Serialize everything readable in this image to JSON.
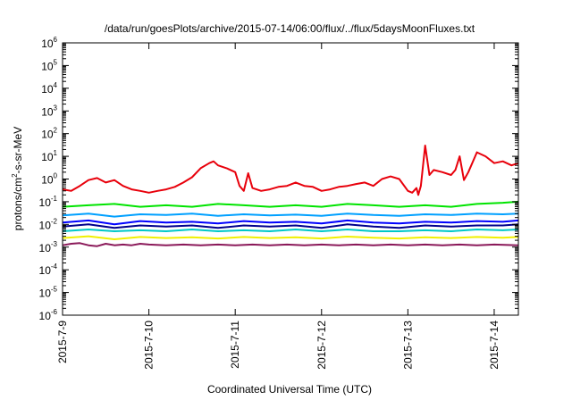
{
  "chart_data": {
    "type": "line",
    "title": "/data/run/goesPlots/archive/2015-07-14/06:00/flux/../flux/5daysMoonFluxes.txt",
    "xlabel": "Coordinated Universal Time (UTC)",
    "ylabel": {
      "base": "protons/cm",
      "sup": "2",
      "rest": "-s-sr-MeV"
    },
    "y_scale": "log",
    "ylim": [
      1e-06,
      1000000.0
    ],
    "y_ticks": [
      {
        "base": "10",
        "exp": "6"
      },
      {
        "base": "10",
        "exp": "5"
      },
      {
        "base": "10",
        "exp": "4"
      },
      {
        "base": "10",
        "exp": "3"
      },
      {
        "base": "10",
        "exp": "2"
      },
      {
        "base": "10",
        "exp": "1"
      },
      {
        "base": "10",
        "exp": "0"
      },
      {
        "base": "10",
        "exp": "-1"
      },
      {
        "base": "10",
        "exp": "-2"
      },
      {
        "base": "10",
        "exp": "-3"
      },
      {
        "base": "10",
        "exp": "-4"
      },
      {
        "base": "10",
        "exp": "-5"
      },
      {
        "base": "10",
        "exp": "-6"
      }
    ],
    "x_ticks": [
      "2015-7-9",
      "2015-7-10",
      "2015-7-11",
      "2015-7-12",
      "2015-7-13",
      "2015-7-14"
    ],
    "xlim": [
      0,
      5.28
    ],
    "grid": false,
    "series": [
      {
        "color": "#e8000b",
        "x": [
          0.0,
          0.1,
          0.2,
          0.3,
          0.4,
          0.5,
          0.6,
          0.7,
          0.8,
          0.9,
          1.0,
          1.1,
          1.2,
          1.3,
          1.4,
          1.5,
          1.6,
          1.7,
          1.75,
          1.8,
          1.9,
          2.0,
          2.05,
          2.1,
          2.15,
          2.2,
          2.3,
          2.4,
          2.5,
          2.6,
          2.7,
          2.8,
          2.9,
          3.0,
          3.1,
          3.2,
          3.3,
          3.4,
          3.5,
          3.6,
          3.7,
          3.8,
          3.9,
          4.0,
          4.05,
          4.1,
          4.12,
          4.15,
          4.2,
          4.25,
          4.3,
          4.4,
          4.5,
          4.55,
          4.6,
          4.65,
          4.7,
          4.8,
          4.9,
          5.0,
          5.1,
          5.2,
          5.28
        ],
        "y": [
          0.35,
          0.3,
          0.5,
          0.9,
          1.1,
          0.7,
          0.9,
          0.5,
          0.35,
          0.3,
          0.25,
          0.3,
          0.35,
          0.45,
          0.7,
          1.2,
          3.0,
          5.0,
          6.0,
          4.0,
          3.0,
          2.0,
          0.5,
          0.3,
          1.8,
          0.4,
          0.3,
          0.35,
          0.45,
          0.5,
          0.7,
          0.5,
          0.45,
          0.3,
          0.35,
          0.45,
          0.5,
          0.6,
          0.7,
          0.5,
          1.0,
          1.3,
          1.0,
          0.3,
          0.25,
          0.4,
          0.2,
          0.5,
          30.0,
          1.5,
          2.5,
          2.0,
          1.5,
          2.5,
          10.0,
          0.9,
          2.0,
          15.0,
          10.0,
          5.0,
          6.0,
          4.0,
          5.0
        ]
      },
      {
        "color": "#00e400",
        "x": [
          0.0,
          0.3,
          0.6,
          0.9,
          1.2,
          1.5,
          1.8,
          2.1,
          2.4,
          2.7,
          3.0,
          3.3,
          3.6,
          3.9,
          4.2,
          4.5,
          4.8,
          5.1,
          5.28
        ],
        "y": [
          0.06,
          0.07,
          0.08,
          0.06,
          0.07,
          0.06,
          0.08,
          0.07,
          0.06,
          0.07,
          0.06,
          0.08,
          0.07,
          0.06,
          0.07,
          0.06,
          0.08,
          0.09,
          0.1
        ]
      },
      {
        "color": "#00a0ff",
        "x": [
          0.0,
          0.3,
          0.6,
          0.9,
          1.2,
          1.5,
          1.8,
          2.1,
          2.4,
          2.7,
          3.0,
          3.3,
          3.6,
          3.9,
          4.2,
          4.5,
          4.8,
          5.1,
          5.28
        ],
        "y": [
          0.025,
          0.03,
          0.022,
          0.028,
          0.026,
          0.03,
          0.024,
          0.028,
          0.025,
          0.027,
          0.024,
          0.03,
          0.026,
          0.024,
          0.028,
          0.026,
          0.03,
          0.028,
          0.03
        ]
      },
      {
        "color": "#0000ff",
        "x": [
          0.0,
          0.3,
          0.6,
          0.9,
          1.2,
          1.5,
          1.8,
          2.1,
          2.4,
          2.7,
          3.0,
          3.3,
          3.6,
          3.9,
          4.2,
          4.5,
          4.8,
          5.1,
          5.28
        ],
        "y": [
          0.012,
          0.015,
          0.01,
          0.014,
          0.012,
          0.013,
          0.011,
          0.014,
          0.012,
          0.013,
          0.011,
          0.015,
          0.012,
          0.011,
          0.013,
          0.012,
          0.014,
          0.013,
          0.015
        ]
      },
      {
        "color": "#00008b",
        "x": [
          0.0,
          0.3,
          0.6,
          0.9,
          1.2,
          1.5,
          1.8,
          2.1,
          2.4,
          2.7,
          3.0,
          3.3,
          3.6,
          3.9,
          4.2,
          4.5,
          4.8,
          5.1,
          5.28
        ],
        "y": [
          0.008,
          0.01,
          0.007,
          0.009,
          0.008,
          0.009,
          0.007,
          0.009,
          0.008,
          0.009,
          0.007,
          0.01,
          0.008,
          0.007,
          0.009,
          0.008,
          0.009,
          0.009,
          0.01
        ]
      },
      {
        "color": "#00c8c8",
        "x": [
          0.0,
          0.3,
          0.6,
          0.9,
          1.2,
          1.5,
          1.8,
          2.1,
          2.4,
          2.7,
          3.0,
          3.3,
          3.6,
          3.9,
          4.2,
          4.5,
          4.8,
          5.1,
          5.28
        ],
        "y": [
          0.005,
          0.006,
          0.005,
          0.0055,
          0.005,
          0.006,
          0.005,
          0.0055,
          0.005,
          0.006,
          0.005,
          0.006,
          0.005,
          0.005,
          0.0055,
          0.005,
          0.006,
          0.0055,
          0.006
        ]
      },
      {
        "color": "#f0f000",
        "x": [
          0.0,
          0.3,
          0.6,
          0.9,
          1.2,
          1.5,
          1.8,
          2.1,
          2.4,
          2.7,
          3.0,
          3.3,
          3.6,
          3.9,
          4.2,
          4.5,
          4.8,
          5.1,
          5.28
        ],
        "y": [
          0.0025,
          0.003,
          0.0022,
          0.0028,
          0.0025,
          0.0027,
          0.0024,
          0.0028,
          0.0025,
          0.0027,
          0.0024,
          0.0029,
          0.0026,
          0.0024,
          0.0027,
          0.0025,
          0.0028,
          0.0026,
          0.0028
        ]
      },
      {
        "color": "#8b1a5a",
        "x": [
          0.0,
          0.1,
          0.2,
          0.3,
          0.4,
          0.5,
          0.6,
          0.7,
          0.8,
          0.9,
          1.0,
          1.2,
          1.4,
          1.6,
          1.8,
          2.0,
          2.2,
          2.4,
          2.6,
          2.8,
          3.0,
          3.2,
          3.4,
          3.6,
          3.8,
          4.0,
          4.2,
          4.4,
          4.6,
          4.8,
          5.0,
          5.28
        ],
        "y": [
          0.0012,
          0.0014,
          0.0015,
          0.0012,
          0.0011,
          0.0014,
          0.0012,
          0.0013,
          0.0012,
          0.0014,
          0.0013,
          0.0012,
          0.0013,
          0.0012,
          0.0013,
          0.0012,
          0.0013,
          0.0012,
          0.0013,
          0.0012,
          0.0013,
          0.0012,
          0.0013,
          0.0012,
          0.0013,
          0.0012,
          0.0013,
          0.0012,
          0.0013,
          0.0012,
          0.0013,
          0.0012
        ]
      }
    ]
  }
}
